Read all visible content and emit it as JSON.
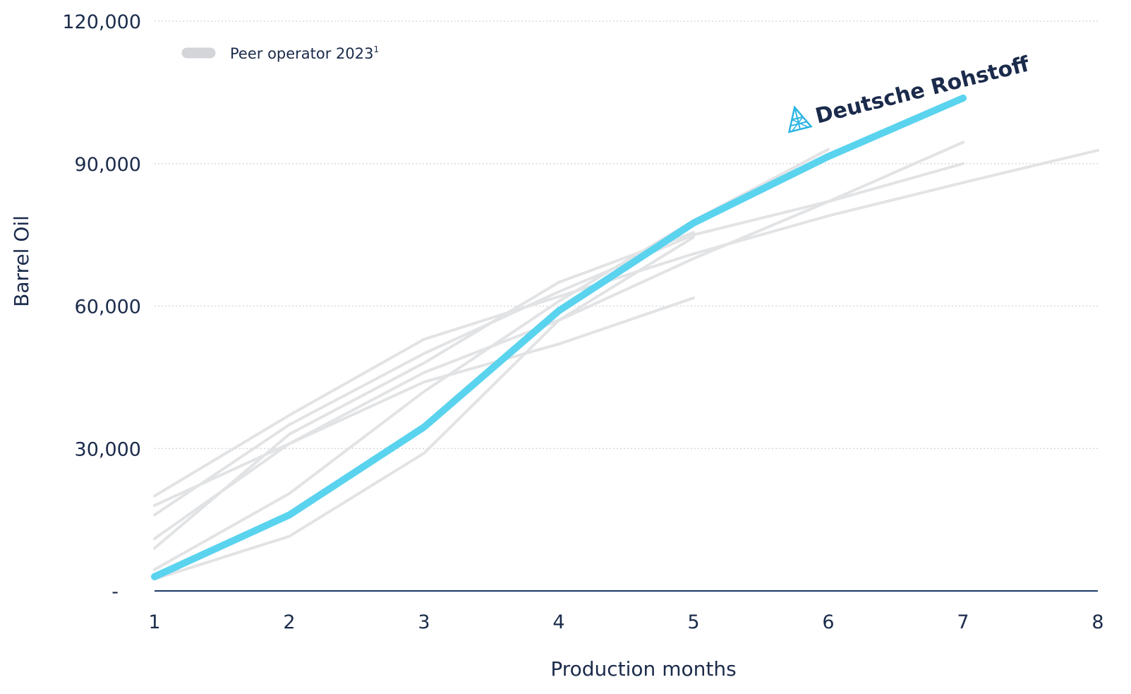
{
  "chart_data": {
    "type": "line",
    "xlabel": "Production months",
    "ylabel": "Barrel Oil",
    "x": [
      1,
      2,
      3,
      4,
      5,
      6,
      7,
      8
    ],
    "xlim": [
      1,
      8
    ],
    "ylim": [
      0,
      120000
    ],
    "yticks": [
      0,
      30000,
      60000,
      90000,
      120000
    ],
    "ytick_labels": [
      "-",
      "30,000",
      "60,000",
      "90,000",
      "120,000"
    ],
    "xtick_labels": [
      "1",
      "2",
      "3",
      "4",
      "5",
      "6",
      "7",
      "8"
    ],
    "grid": true,
    "legend": {
      "position": "top-left",
      "label": "Peer operator 2023",
      "superscript": "1"
    },
    "series": [
      {
        "name": "Deutsche Rohstoff",
        "color": "#5ad3ee",
        "highlight": true,
        "x": [
          1,
          2,
          3,
          4,
          5,
          6,
          7
        ],
        "values": [
          3000,
          16000,
          34500,
          59000,
          77500,
          91500,
          103800
        ]
      },
      {
        "color": "#e2e3e5",
        "x": [
          1,
          2,
          3,
          4,
          5,
          6,
          7,
          8
        ],
        "values": [
          20000,
          37000,
          53000,
          62000,
          71000,
          79000,
          86000,
          92800
        ]
      },
      {
        "color": "#e2e3e5",
        "x": [
          1,
          2,
          3,
          4,
          5,
          6,
          7
        ],
        "values": [
          16000,
          35000,
          50000,
          63000,
          75000,
          82000,
          90000
        ]
      },
      {
        "color": "#e2e3e5",
        "x": [
          1,
          2,
          3,
          4,
          5
        ],
        "values": [
          18000,
          31000,
          44000,
          52000,
          61700
        ]
      },
      {
        "color": "#e2e3e5",
        "x": [
          1,
          2,
          3,
          4,
          5,
          6,
          7
        ],
        "values": [
          11000,
          31000,
          46000,
          57000,
          70000,
          82000,
          94500
        ]
      },
      {
        "color": "#e2e3e5",
        "x": [
          1,
          2,
          3,
          4,
          5
        ],
        "values": [
          9000,
          33000,
          48000,
          65000,
          75500
        ]
      },
      {
        "color": "#e2e3e5",
        "x": [
          1,
          2,
          3,
          4,
          5,
          6
        ],
        "values": [
          4500,
          20500,
          42000,
          61000,
          78000,
          93000
        ]
      },
      {
        "color": "#e2e3e5",
        "x": [
          1,
          2,
          3,
          4,
          5
        ],
        "values": [
          2500,
          11500,
          29000,
          57000,
          74500
        ]
      }
    ],
    "annotation": "Deutsche Rohstoff"
  }
}
